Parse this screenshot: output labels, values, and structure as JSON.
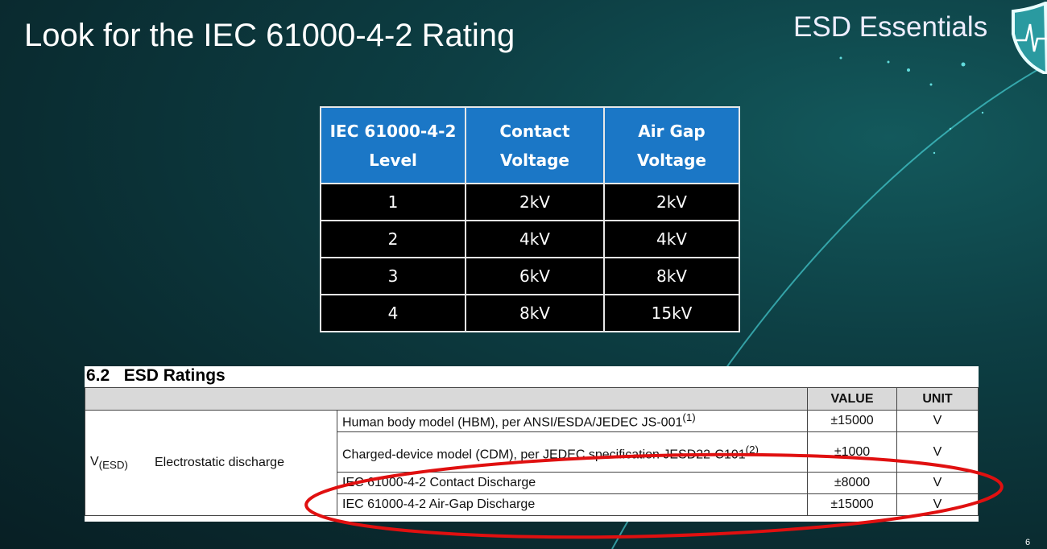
{
  "slide": {
    "title": "Look for the IEC 61000-4-2 Rating",
    "brand": "ESD Essentials",
    "page_number": "6",
    "logo_icon": "shield-heartbeat-icon"
  },
  "iec_table": {
    "headers": [
      "IEC 61000-4-2 Level",
      "Contact Voltage",
      "Air Gap Voltage"
    ],
    "rows": [
      [
        "1",
        "2kV",
        "2kV"
      ],
      [
        "2",
        "4kV",
        "4kV"
      ],
      [
        "3",
        "6kV",
        "8kV"
      ],
      [
        "4",
        "8kV",
        "15kV"
      ]
    ],
    "header_color": "#1b77c6"
  },
  "esd_ratings": {
    "section": "6.2   ESD Ratings",
    "headers": {
      "value": "VALUE",
      "unit": "UNIT"
    },
    "symbol": "V",
    "symbol_sub": "(ESD)",
    "parameter": "Electrostatic discharge",
    "rows": [
      {
        "desc": "Human body model (HBM), per ANSI/ESDA/JEDEC JS-001",
        "note": "(1)",
        "value": "±15000",
        "unit": "V"
      },
      {
        "desc": "Charged-device model (CDM), per JEDEC specification JESD22-C101",
        "note": "(2)",
        "value": "±1000",
        "unit": "V"
      },
      {
        "desc": "IEC 61000-4-2 Contact Discharge",
        "note": "",
        "value": "±8000",
        "unit": "V"
      },
      {
        "desc": "IEC 61000-4-2 Air-Gap Discharge",
        "note": "",
        "value": "±15000",
        "unit": "V"
      }
    ],
    "highlight_color": "#e01010"
  }
}
